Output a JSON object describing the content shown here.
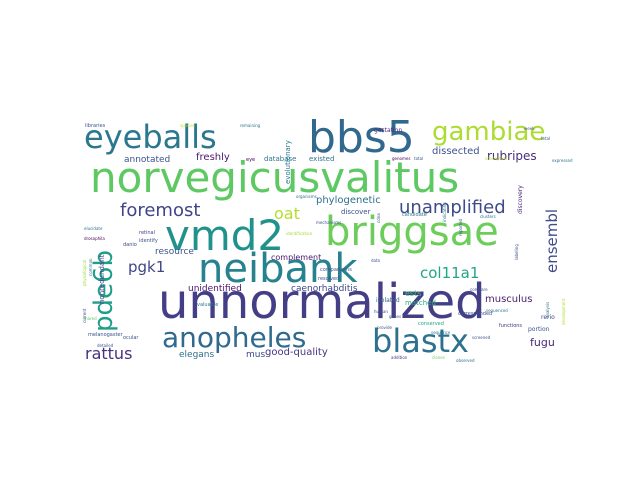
{
  "words": [
    {
      "text": "unnormalized",
      "color": "#433e85"
    },
    {
      "text": "norvegicusvalitus",
      "color": "#5ec962"
    },
    {
      "text": "bbs5",
      "color": "#31688e"
    },
    {
      "text": "briggsae",
      "color": "#6ccd5a"
    },
    {
      "text": "neibank",
      "color": "#26828e"
    },
    {
      "text": "vmd2",
      "color": "#21918c"
    },
    {
      "text": "eyeballs",
      "color": "#2a788e"
    },
    {
      "text": "blastx",
      "color": "#2c728e"
    },
    {
      "text": "anopheles",
      "color": "#306a8e"
    },
    {
      "text": "gambiae",
      "color": "#addc30"
    },
    {
      "text": "pde6b",
      "color": "#1f9e89"
    },
    {
      "text": "unamplified",
      "color": "#3e4a89"
    },
    {
      "text": "foremost",
      "color": "#414487"
    },
    {
      "text": "rattus",
      "color": "#46317e"
    },
    {
      "text": "ensembl",
      "color": "#3e4c8a"
    },
    {
      "text": "col11a1",
      "color": "#21a685"
    },
    {
      "text": "pgk1",
      "color": "#404588"
    },
    {
      "text": "oat",
      "color": "#b5de2b"
    },
    {
      "text": "rubripes",
      "color": "#472d7b"
    },
    {
      "text": "fugu",
      "color": "#482878"
    },
    {
      "text": "musculus",
      "color": "#482071"
    },
    {
      "text": "dissected",
      "color": "#3b528b"
    },
    {
      "text": "phylogenetic",
      "color": "#2d708e"
    },
    {
      "text": "freshly",
      "color": "#481b6d"
    },
    {
      "text": "annotated",
      "color": "#3a548c"
    },
    {
      "text": "resource",
      "color": "#3b528b"
    },
    {
      "text": "unidentified",
      "color": "#481467"
    },
    {
      "text": "caenorhabditis",
      "color": "#3f4788"
    },
    {
      "text": "complement",
      "color": "#48186a"
    },
    {
      "text": "elegans",
      "color": "#2e6f8e"
    },
    {
      "text": "mus",
      "color": "#3e4989"
    },
    {
      "text": "good-quality",
      "color": "#46337f"
    },
    {
      "text": "ests",
      "color": "#3fbc73"
    },
    {
      "text": "matched",
      "color": "#29af7f"
    },
    {
      "text": "discover",
      "color": "#3b528b"
    },
    {
      "text": "evolutionary",
      "color": "#2a778e"
    },
    {
      "text": "database",
      "color": "#2c738e"
    },
    {
      "text": "existed",
      "color": "#2c738e"
    },
    {
      "text": "nonredundant",
      "color": "#414487"
    },
    {
      "text": "gestation",
      "color": "#482677"
    },
    {
      "text": "discovery",
      "color": "#482475"
    },
    {
      "text": "isolated",
      "color": "#34618d"
    },
    {
      "text": "portion",
      "color": "#3b528b"
    },
    {
      "text": "rerio",
      "color": "#3f4889"
    },
    {
      "text": "conserved",
      "color": "#21a585"
    },
    {
      "text": "danio",
      "color": "#414487"
    },
    {
      "text": "corresponded",
      "color": "#3b528b"
    },
    {
      "text": "functions",
      "color": "#46327e"
    },
    {
      "text": "libraries",
      "color": "#3a538b"
    },
    {
      "text": "ocular",
      "color": "#3b528b"
    },
    {
      "text": "melanogaster",
      "color": "#3b528b"
    },
    {
      "text": "valuable",
      "color": "#2a788e"
    },
    {
      "text": "comparisons",
      "color": "#3b528b"
    },
    {
      "text": "resolved",
      "color": "#3b528b"
    },
    {
      "text": "identify",
      "color": "#3b528b"
    },
    {
      "text": "retinal",
      "color": "#414487"
    },
    {
      "text": "elucidate",
      "color": "#2c728e"
    },
    {
      "text": "drosophila",
      "color": "#440154"
    },
    {
      "text": "shared",
      "color": "#5ec962"
    },
    {
      "text": "current",
      "color": "#3b528b"
    },
    {
      "text": "detailed",
      "color": "#3b528b"
    },
    {
      "text": "physiological",
      "color": "#9bd93c"
    },
    {
      "text": "common",
      "color": "#2c728e"
    },
    {
      "text": "addition",
      "color": "#46327e"
    },
    {
      "text": "clones",
      "color": "#6ccd5a"
    },
    {
      "text": "provide",
      "color": "#3b528b"
    },
    {
      "text": "sequence",
      "color": "#2a788e"
    },
    {
      "text": "candidate",
      "color": "#2a788e"
    },
    {
      "text": "mechanisms",
      "color": "#3b528b"
    },
    {
      "text": "identification",
      "color": "#a5db36"
    },
    {
      "text": "organisms",
      "color": "#2c728e"
    },
    {
      "text": "species",
      "color": "#b5de2b"
    },
    {
      "text": "remaining",
      "color": "#2c728e"
    },
    {
      "text": "eye",
      "color": "#440154"
    },
    {
      "text": "genomes",
      "color": "#440154"
    },
    {
      "text": "total",
      "color": "#3b528b"
    },
    {
      "text": "cdna",
      "color": "#3b528b"
    },
    {
      "text": "data",
      "color": "#3b528b"
    },
    {
      "text": "indicating",
      "color": "#2c728e"
    },
    {
      "text": "screened",
      "color": "#3b528b"
    },
    {
      "text": "sequenced",
      "color": "#2c728e"
    },
    {
      "text": "compare",
      "color": "#3b528b"
    },
    {
      "text": "clusters",
      "color": "#2c728e"
    },
    {
      "text": "human",
      "color": "#3b528b"
    },
    {
      "text": "genes",
      "color": "#3b528b"
    },
    {
      "text": "analysis",
      "color": "#2c728e"
    },
    {
      "text": "labeling",
      "color": "#3b528b"
    },
    {
      "text": "development",
      "color": "#b5de2b"
    },
    {
      "text": "week",
      "color": "#3b528b"
    },
    {
      "text": "fetal",
      "color": "#3b528b"
    },
    {
      "text": "conceptual",
      "color": "#b5de2b"
    },
    {
      "text": "expressed",
      "color": "#2c728e"
    },
    {
      "text": "observed",
      "color": "#2c728e"
    },
    {
      "text": "reported",
      "color": "#3b528b"
    }
  ]
}
